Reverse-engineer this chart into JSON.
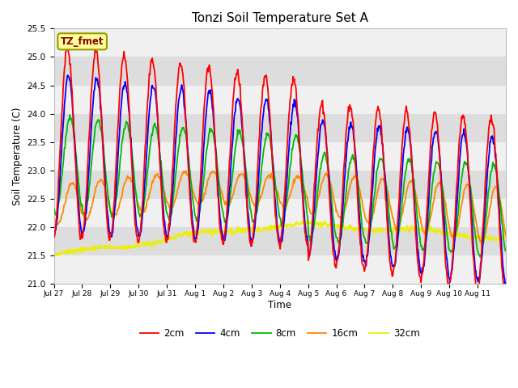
{
  "title": "Tonzi Soil Temperature Set A",
  "xlabel": "Time",
  "ylabel": "Soil Temperature (C)",
  "ylim": [
    21.0,
    25.5
  ],
  "yticks": [
    21.0,
    21.5,
    22.0,
    22.5,
    23.0,
    23.5,
    24.0,
    24.5,
    25.0,
    25.5
  ],
  "xtick_labels": [
    "Jul 27",
    "Jul 28",
    "Jul 29",
    "Jul 30",
    "Jul 31",
    "Aug 1",
    "Aug 2",
    "Aug 3",
    "Aug 4",
    "Aug 5",
    "Aug 6",
    "Aug 7",
    "Aug 8",
    "Aug 9",
    "Aug 10",
    "Aug 11"
  ],
  "line_colors": [
    "#ff0000",
    "#0000ff",
    "#00bb00",
    "#ff8800",
    "#eeee00"
  ],
  "line_labels": [
    "2cm",
    "4cm",
    "8cm",
    "16cm",
    "32cm"
  ],
  "annotation_text": "TZ_fmet",
  "annotation_color": "#880000",
  "annotation_bg": "#ffff99",
  "annotation_edge": "#999900",
  "plot_bg_light": "#f0f0f0",
  "plot_bg_dark": "#dddddd",
  "fig_bg": "#ffffff",
  "n_days": 16,
  "samples_per_day": 48
}
